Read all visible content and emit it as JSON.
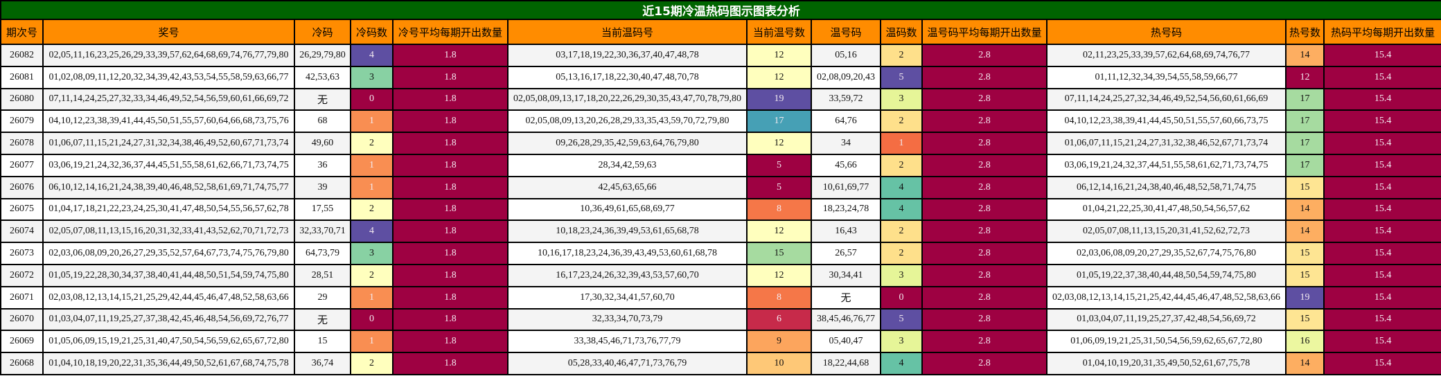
{
  "title": "近15期冷温热码图示图表分析",
  "headers": [
    "期次号",
    "奖号",
    "冷码",
    "冷码数",
    "冷号平均每期开出数量",
    "当前温码号",
    "当前温号数",
    "温号码",
    "温码数",
    "温号码平均每期开出数量",
    "热号码",
    "热号数",
    "热码平均每期开出数量"
  ],
  "palette": {
    "title_bg": "#006400",
    "header_bg": "#ff8c00",
    "avg_bg": "#9e0142",
    "scale": {
      "0": "#9e0142",
      "1": "#f98e52",
      "2": "#ffffbe",
      "3": "#88d1a3",
      "4": "#5e4fa2"
    }
  },
  "rows": [
    {
      "period": "26082",
      "numbers": "02,05,11,16,23,25,26,29,33,39,57,62,64,68,69,74,76,77,79,80",
      "cold": "26,29,79,80",
      "cold_count": "4",
      "cold_avg": "1.8",
      "warm_current": "03,17,18,19,22,30,36,37,40,47,48,78",
      "warm_current_count": "12",
      "warm": "05,16",
      "warm_count": "2",
      "warm_avg": "2.8",
      "hot": "02,11,23,25,33,39,57,62,64,68,69,74,76,77",
      "hot_count": "14",
      "hot_avg": "15.4",
      "colors": {
        "cold_count": "#5e4fa2",
        "warm_current_count": "#ffffbe",
        "warm_count": "#fee08b",
        "hot_count": "#fdae61"
      }
    },
    {
      "period": "26081",
      "numbers": "01,02,08,09,11,12,20,32,34,39,42,43,53,54,55,58,59,63,66,77",
      "cold": "42,53,63",
      "cold_count": "3",
      "cold_avg": "1.8",
      "warm_current": "05,13,16,17,18,22,30,40,47,48,70,78",
      "warm_current_count": "12",
      "warm": "02,08,09,20,43",
      "warm_count": "5",
      "warm_avg": "2.8",
      "hot": "01,11,12,32,34,39,54,55,58,59,66,77",
      "hot_count": "12",
      "hot_avg": "15.4",
      "colors": {
        "cold_count": "#88d1a3",
        "warm_current_count": "#ffffbe",
        "warm_count": "#5e4fa2",
        "hot_count": "#9e0142"
      }
    },
    {
      "period": "26080",
      "numbers": "07,11,14,24,25,27,32,33,34,46,49,52,54,56,59,60,61,66,69,72",
      "cold": "无",
      "cold_count": "0",
      "cold_avg": "1.8",
      "warm_current": "02,05,08,09,13,17,18,20,22,26,29,30,35,43,47,70,78,79,80",
      "warm_current_count": "19",
      "warm": "33,59,72",
      "warm_count": "3",
      "warm_avg": "2.8",
      "hot": "07,11,14,24,25,27,32,34,46,49,52,54,56,60,61,66,69",
      "hot_count": "17",
      "hot_avg": "15.4",
      "colors": {
        "cold_count": "#9e0142",
        "warm_current_count": "#5e4fa2",
        "warm_count": "#e6f598",
        "hot_count": "#a6dba0"
      }
    },
    {
      "period": "26079",
      "numbers": "04,10,12,23,38,39,41,44,45,50,51,55,57,60,64,66,68,73,75,76",
      "cold": "68",
      "cold_count": "1",
      "cold_avg": "1.8",
      "warm_current": "02,05,08,09,13,20,26,28,29,33,35,43,59,70,72,79,80",
      "warm_current_count": "17",
      "warm": "64,76",
      "warm_count": "2",
      "warm_avg": "2.8",
      "hot": "04,10,12,23,38,39,41,44,45,50,51,55,57,60,66,73,75",
      "hot_count": "17",
      "hot_avg": "15.4",
      "colors": {
        "cold_count": "#f98e52",
        "warm_current_count": "#46a0b5",
        "warm_count": "#fee08b",
        "hot_count": "#a6dba0"
      }
    },
    {
      "period": "26078",
      "numbers": "01,06,07,11,15,21,24,27,31,32,34,38,46,49,52,60,67,71,73,74",
      "cold": "49,60",
      "cold_count": "2",
      "cold_avg": "1.8",
      "warm_current": "09,26,28,29,35,42,59,63,64,76,79,80",
      "warm_current_count": "12",
      "warm": "34",
      "warm_count": "1",
      "warm_avg": "2.8",
      "hot": "01,06,07,11,15,21,24,27,31,32,38,46,52,67,71,73,74",
      "hot_count": "17",
      "hot_avg": "15.4",
      "colors": {
        "cold_count": "#ffffbe",
        "warm_current_count": "#ffffbe",
        "warm_count": "#f46d43",
        "hot_count": "#a6dba0"
      }
    },
    {
      "period": "26077",
      "numbers": "03,06,19,21,24,32,36,37,44,45,51,55,58,61,62,66,71,73,74,75",
      "cold": "36",
      "cold_count": "1",
      "cold_avg": "1.8",
      "warm_current": "28,34,42,59,63",
      "warm_current_count": "5",
      "warm": "45,66",
      "warm_count": "2",
      "warm_avg": "2.8",
      "hot": "03,06,19,21,24,32,37,44,51,55,58,61,62,71,73,74,75",
      "hot_count": "17",
      "hot_avg": "15.4",
      "colors": {
        "cold_count": "#f98e52",
        "warm_current_count": "#9e0142",
        "warm_count": "#fee08b",
        "hot_count": "#a6dba0"
      }
    },
    {
      "period": "26076",
      "numbers": "06,10,12,14,16,21,24,38,39,40,46,48,52,58,61,69,71,74,75,77",
      "cold": "39",
      "cold_count": "1",
      "cold_avg": "1.8",
      "warm_current": "42,45,63,65,66",
      "warm_current_count": "5",
      "warm": "10,61,69,77",
      "warm_count": "4",
      "warm_avg": "2.8",
      "hot": "06,12,14,16,21,24,38,40,46,48,52,58,71,74,75",
      "hot_count": "15",
      "hot_avg": "15.4",
      "colors": {
        "cold_count": "#f98e52",
        "warm_current_count": "#9e0142",
        "warm_count": "#66c2a5",
        "hot_count": "#fee593"
      }
    },
    {
      "period": "26075",
      "numbers": "01,04,17,18,21,22,23,24,25,30,41,47,48,50,54,55,56,57,62,78",
      "cold": "17,55",
      "cold_count": "2",
      "cold_avg": "1.8",
      "warm_current": "10,36,49,61,65,68,69,77",
      "warm_current_count": "8",
      "warm": "18,23,24,78",
      "warm_count": "4",
      "warm_avg": "2.8",
      "hot": "01,04,21,22,25,30,41,47,48,50,54,56,57,62",
      "hot_count": "14",
      "hot_avg": "15.4",
      "colors": {
        "cold_count": "#ffffbe",
        "warm_current_count": "#f57748",
        "warm_count": "#66c2a5",
        "hot_count": "#fdae61"
      }
    },
    {
      "period": "26074",
      "numbers": "02,05,07,08,11,13,15,16,20,31,32,33,41,43,52,62,70,71,72,73",
      "cold": "32,33,70,71",
      "cold_count": "4",
      "cold_avg": "1.8",
      "warm_current": "10,18,23,24,36,39,49,53,61,65,68,78",
      "warm_current_count": "12",
      "warm": "16,43",
      "warm_count": "2",
      "warm_avg": "2.8",
      "hot": "02,05,07,08,11,13,15,20,31,41,52,62,72,73",
      "hot_count": "14",
      "hot_avg": "15.4",
      "colors": {
        "cold_count": "#5e4fa2",
        "warm_current_count": "#ffffbe",
        "warm_count": "#fee08b",
        "hot_count": "#fdae61"
      }
    },
    {
      "period": "26073",
      "numbers": "02,03,06,08,09,20,26,27,29,35,52,57,64,67,73,74,75,76,79,80",
      "cold": "64,73,79",
      "cold_count": "3",
      "cold_avg": "1.8",
      "warm_current": "10,16,17,18,23,24,36,39,43,49,53,60,61,68,78",
      "warm_current_count": "15",
      "warm": "26,57",
      "warm_count": "2",
      "warm_avg": "2.8",
      "hot": "02,03,06,08,09,20,27,29,35,52,67,74,75,76,80",
      "hot_count": "15",
      "hot_avg": "15.4",
      "colors": {
        "cold_count": "#88d1a3",
        "warm_current_count": "#a6dba0",
        "warm_count": "#fee08b",
        "hot_count": "#fee593"
      }
    },
    {
      "period": "26072",
      "numbers": "01,05,19,22,28,30,34,37,38,40,41,44,48,50,51,54,59,74,75,80",
      "cold": "28,51",
      "cold_count": "2",
      "cold_avg": "1.8",
      "warm_current": "16,17,23,24,26,32,39,43,53,57,60,70",
      "warm_current_count": "12",
      "warm": "30,34,41",
      "warm_count": "3",
      "warm_avg": "2.8",
      "hot": "01,05,19,22,37,38,40,44,48,50,54,59,74,75,80",
      "hot_count": "15",
      "hot_avg": "15.4",
      "colors": {
        "cold_count": "#ffffbe",
        "warm_current_count": "#ffffbe",
        "warm_count": "#e6f598",
        "hot_count": "#fee593"
      }
    },
    {
      "period": "26071",
      "numbers": "02,03,08,12,13,14,15,21,25,29,42,44,45,46,47,48,52,58,63,66",
      "cold": "29",
      "cold_count": "1",
      "cold_avg": "1.8",
      "warm_current": "17,30,32,34,41,57,60,70",
      "warm_current_count": "8",
      "warm": "无",
      "warm_count": "0",
      "warm_avg": "2.8",
      "hot": "02,03,08,12,13,14,15,21,25,42,44,45,46,47,48,52,58,63,66",
      "hot_count": "19",
      "hot_avg": "15.4",
      "colors": {
        "cold_count": "#f98e52",
        "warm_current_count": "#f57748",
        "warm_count": "#9e0142",
        "hot_count": "#5e4fa2"
      }
    },
    {
      "period": "26070",
      "numbers": "01,03,04,07,11,19,25,27,37,38,42,45,46,48,54,56,69,72,76,77",
      "cold": "无",
      "cold_count": "0",
      "cold_avg": "1.8",
      "warm_current": "32,33,34,70,73,79",
      "warm_current_count": "6",
      "warm": "38,45,46,76,77",
      "warm_count": "5",
      "warm_avg": "2.8",
      "hot": "01,03,04,07,11,19,25,27,37,42,48,54,56,69,72",
      "hot_count": "15",
      "hot_avg": "15.4",
      "colors": {
        "cold_count": "#9e0142",
        "warm_current_count": "#c72a4a",
        "warm_count": "#5e4fa2",
        "hot_count": "#fee593"
      }
    },
    {
      "period": "26069",
      "numbers": "01,05,06,09,15,19,21,25,31,40,47,50,54,56,59,62,65,67,72,80",
      "cold": "15",
      "cold_count": "1",
      "cold_avg": "1.8",
      "warm_current": "33,38,45,46,71,73,76,77,79",
      "warm_current_count": "9",
      "warm": "05,40,47",
      "warm_count": "3",
      "warm_avg": "2.8",
      "hot": "01,06,09,19,21,25,31,50,54,56,59,62,65,67,72,80",
      "hot_count": "16",
      "hot_avg": "15.4",
      "colors": {
        "cold_count": "#f98e52",
        "warm_current_count": "#fca55d",
        "warm_count": "#e6f598",
        "hot_count": "#ecf7a0"
      }
    },
    {
      "period": "26068",
      "numbers": "01,04,10,18,19,20,22,31,35,36,44,49,50,52,61,67,68,74,75,78",
      "cold": "36,74",
      "cold_count": "2",
      "cold_avg": "1.8",
      "warm_current": "05,28,33,40,46,47,71,73,76,79",
      "warm_current_count": "10",
      "warm": "18,22,44,68",
      "warm_count": "4",
      "warm_avg": "2.8",
      "hot": "01,04,10,19,20,31,35,49,50,52,61,67,75,78",
      "hot_count": "14",
      "hot_avg": "15.4",
      "colors": {
        "cold_count": "#ffffbe",
        "warm_current_count": "#fec877",
        "warm_count": "#66c2a5",
        "hot_count": "#fdae61"
      }
    }
  ]
}
